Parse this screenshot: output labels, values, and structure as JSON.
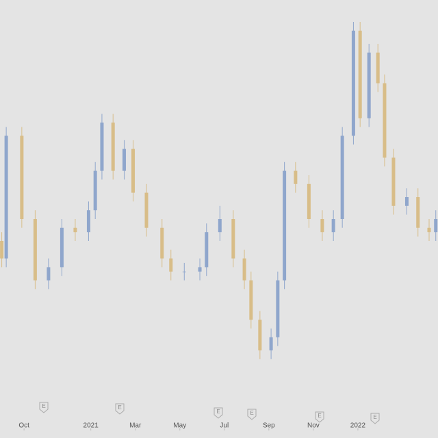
{
  "chart_data": {
    "type": "candlestick",
    "x": [
      0.0,
      0.2,
      0.9,
      1.5,
      2.1,
      2.7,
      3.3,
      3.9,
      4.2,
      4.5,
      5.0,
      5.5,
      5.9,
      6.5,
      7.2,
      7.6,
      8.2,
      8.9,
      9.2,
      9.8,
      10.4,
      10.9,
      11.2,
      11.6,
      12.1,
      12.4,
      12.7,
      13.2,
      13.8,
      14.4,
      14.9,
      15.3,
      15.8,
      16.1,
      16.5,
      16.9,
      17.2,
      17.6,
      18.2,
      18.7,
      19.2,
      19.5
    ],
    "open": [
      45,
      41,
      69,
      50,
      36,
      39,
      48,
      47,
      52,
      61,
      72,
      61,
      66,
      56,
      48,
      41,
      38,
      38,
      39,
      47,
      50,
      41,
      36,
      27,
      20,
      23,
      36,
      61,
      58,
      50,
      47,
      50,
      69,
      93,
      73,
      88,
      81,
      64,
      53,
      55,
      48,
      47
    ],
    "close": [
      41,
      69,
      50,
      36,
      39,
      48,
      47,
      52,
      61,
      72,
      61,
      66,
      56,
      48,
      41,
      38,
      38,
      39,
      47,
      50,
      41,
      36,
      27,
      20,
      23,
      36,
      61,
      58,
      50,
      47,
      50,
      69,
      93,
      73,
      88,
      81,
      64,
      53,
      55,
      48,
      47,
      50
    ],
    "high": [
      47,
      71,
      71,
      52,
      41,
      50,
      50,
      54,
      63,
      74,
      74,
      68,
      68,
      58,
      50,
      43,
      40,
      41,
      49,
      53,
      52,
      43,
      38,
      29,
      25,
      38,
      63,
      63,
      60,
      52,
      52,
      71,
      95,
      95,
      90,
      90,
      83,
      66,
      57,
      57,
      50,
      52
    ],
    "low": [
      39,
      39,
      48,
      34,
      34,
      37,
      45,
      45,
      50,
      59,
      59,
      59,
      54,
      46,
      39,
      36,
      36,
      36,
      37,
      45,
      39,
      34,
      25,
      18,
      18,
      21,
      34,
      56,
      48,
      45,
      45,
      48,
      67,
      71,
      71,
      79,
      62,
      51,
      51,
      46,
      45,
      45
    ],
    "up_color": "#8fa6cc",
    "down_color": "#d8bd88",
    "xlim": [
      -0.08,
      19.6
    ],
    "ylim": [
      0,
      100
    ],
    "xticks": [
      {
        "value": 1,
        "label": "Oct"
      },
      {
        "value": 4,
        "label": "2021"
      },
      {
        "value": 6,
        "label": "Mar"
      },
      {
        "value": 8,
        "label": "May"
      },
      {
        "value": 10,
        "label": "Jul"
      },
      {
        "value": 12,
        "label": "Sep"
      },
      {
        "value": 14,
        "label": "Nov"
      },
      {
        "value": 16,
        "label": "2022"
      }
    ]
  }
}
